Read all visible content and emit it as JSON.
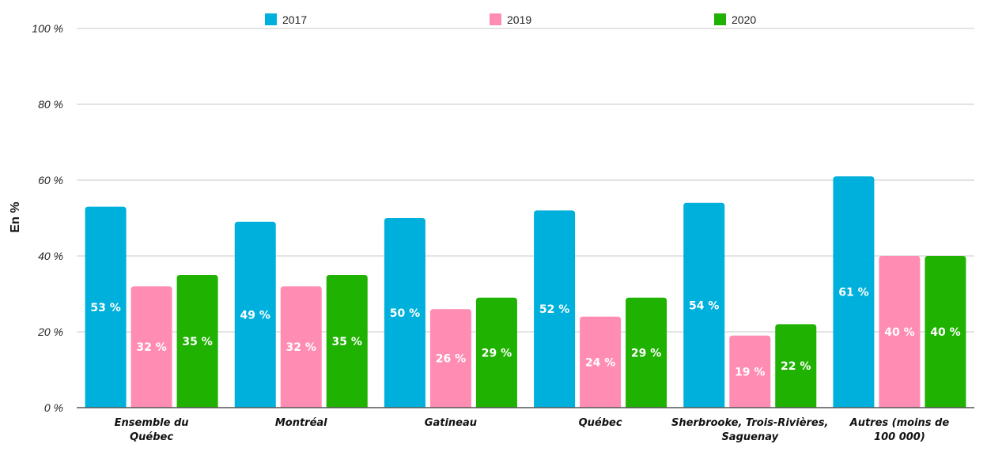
{
  "chart_data": {
    "type": "bar",
    "title": "",
    "xlabel": "",
    "ylabel": "En %",
    "ylim": [
      0,
      100
    ],
    "yticks": [
      0,
      20,
      40,
      60,
      80,
      100
    ],
    "ytick_labels": [
      "0 %",
      "20 %",
      "40 %",
      "60 %",
      "80 %",
      "100 %"
    ],
    "grid": true,
    "legend_position": "top",
    "categories": [
      [
        "Ensemble du",
        "Québec"
      ],
      [
        "Montréal"
      ],
      [
        "Gatineau"
      ],
      [
        "Québec"
      ],
      [
        "Sherbrooke, Trois-Rivières,",
        "Saguenay"
      ],
      [
        "Autres (moins de",
        "100 000)"
      ]
    ],
    "series": [
      {
        "name": "2017",
        "color": "#00b0dc",
        "values": [
          53,
          49,
          50,
          52,
          54,
          61
        ],
        "labels": [
          "53 %",
          "49 %",
          "50 %",
          "52 %",
          "54 %",
          "61 %"
        ]
      },
      {
        "name": "2019",
        "color": "#ff8db3",
        "values": [
          32,
          32,
          26,
          24,
          19,
          40
        ],
        "labels": [
          "32 %",
          "32 %",
          "26 %",
          "24 %",
          "19 %",
          "40 %"
        ]
      },
      {
        "name": "2020",
        "color": "#1fb200",
        "values": [
          35,
          35,
          29,
          29,
          22,
          40
        ],
        "labels": [
          "35 %",
          "35 %",
          "29 %",
          "29 %",
          "22 %",
          "40 %"
        ]
      }
    ]
  }
}
